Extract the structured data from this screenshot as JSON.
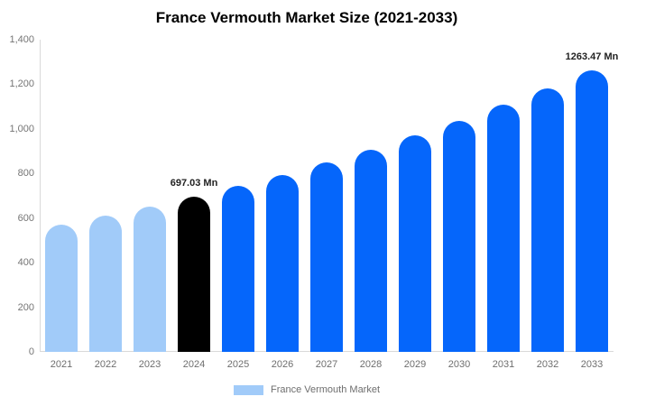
{
  "chart_data": {
    "type": "bar",
    "title": "France Vermouth Market Size (2021-2033)",
    "categories": [
      "2021",
      "2022",
      "2023",
      "2024",
      "2025",
      "2026",
      "2027",
      "2028",
      "2029",
      "2030",
      "2031",
      "2032",
      "2033"
    ],
    "values": [
      570,
      611,
      652,
      697.03,
      745,
      795,
      850,
      908,
      970,
      1036,
      1107,
      1183,
      1263.47
    ],
    "bar_colors": [
      "#a1cbf9",
      "#a1cbf9",
      "#a1cbf9",
      "#000000",
      "#0566fb",
      "#0566fb",
      "#0566fb",
      "#0566fb",
      "#0566fb",
      "#0566fb",
      "#0566fb",
      "#0566fb",
      "#0566fb"
    ],
    "point_labels": [
      "",
      "",
      "",
      "697.03 Mn",
      "",
      "",
      "",
      "",
      "",
      "",
      "",
      "",
      "1263.47 Mn"
    ],
    "xlabel": "",
    "ylabel": "",
    "ylim": [
      0,
      1400
    ],
    "yticks": [
      {
        "value": 0,
        "label": "0"
      },
      {
        "value": 200,
        "label": "200"
      },
      {
        "value": 400,
        "label": "400"
      },
      {
        "value": 600,
        "label": "600"
      },
      {
        "value": 800,
        "label": "800"
      },
      {
        "value": 1000,
        "label": "1,000"
      },
      {
        "value": 1200,
        "label": "1,200"
      },
      {
        "value": 1400,
        "label": "1,400"
      }
    ],
    "grid": false,
    "legend": {
      "position": "bottom",
      "label": "France Vermouth Market",
      "swatch_color": "#a1cbf9"
    }
  },
  "colors": {
    "historical_bar": "#a1cbf9",
    "base_year_bar": "#000000",
    "forecast_bar": "#0566fb",
    "axis_line": "#d9d9d9",
    "tick_text": "#757575"
  }
}
